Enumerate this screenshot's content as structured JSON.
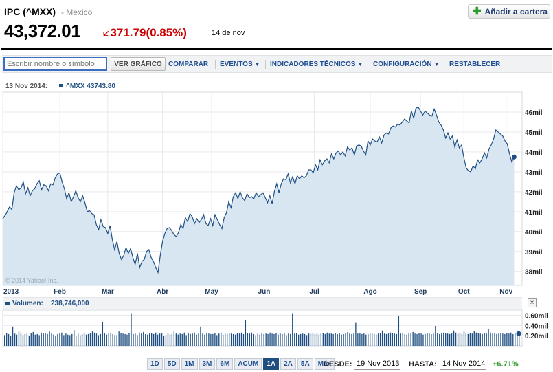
{
  "header": {
    "title": "IPC (^MXX)",
    "exchange": "- Mexico",
    "price": "43,372.01",
    "change": "371.79",
    "change_pct": "(0.85%)",
    "date": "14 de nov",
    "add_button": "Añadir a cartera",
    "colors": {
      "down": "#cc0000",
      "up": "#2a9a2a",
      "link": "#1f4f93"
    }
  },
  "toolbar": {
    "input_placeholder": "Escribir nombre o símbolo",
    "ver_grafico": "VER GRÁFICO",
    "comparar": "COMPARAR",
    "eventos": "EVENTOS",
    "indicadores": "INDICADORES TÉCNICOS",
    "configuracion": "CONFIGURACIÓN",
    "restablecer": "RESTABLECER"
  },
  "chart_data": [
    {
      "type": "area",
      "info_date": "13 Nov 2014:",
      "info_series": "^MXX 43743.80",
      "watermark": "© 2014 Yahoo! Inc.",
      "ylim": [
        37300,
        47000
      ],
      "y_ticks": [
        38000,
        39000,
        40000,
        41000,
        42000,
        43000,
        44000,
        45000,
        46000
      ],
      "y_tick_labels": [
        "38mil",
        "39mil",
        "40mil",
        "41mil",
        "42mil",
        "43mil",
        "44mil",
        "45mil",
        "46mil"
      ],
      "x_labels": [
        "2013",
        "Feb",
        "Mar",
        "Abr",
        "May",
        "Jun",
        "Jul",
        "Ago",
        "Sep",
        "Oct",
        "Nov"
      ],
      "x_label_pos": [
        0,
        50,
        92,
        140,
        183,
        229,
        273,
        322,
        366,
        404,
        441
      ],
      "x_range": [
        0,
        455
      ],
      "colors": {
        "line": "#1f4f82",
        "fill": "#d8e6f2"
      },
      "points": [
        [
          0,
          40650
        ],
        [
          3,
          40900
        ],
        [
          6,
          41250
        ],
        [
          8,
          41100
        ],
        [
          10,
          41950
        ],
        [
          12,
          42300
        ],
        [
          14,
          42100
        ],
        [
          16,
          42200
        ],
        [
          18,
          42500
        ],
        [
          20,
          41900
        ],
        [
          22,
          42200
        ],
        [
          24,
          41800
        ],
        [
          26,
          42050
        ],
        [
          28,
          42150
        ],
        [
          30,
          42400
        ],
        [
          32,
          42550
        ],
        [
          34,
          42100
        ],
        [
          36,
          42350
        ],
        [
          38,
          42300
        ],
        [
          40,
          42050
        ],
        [
          42,
          42400
        ],
        [
          44,
          42350
        ],
        [
          46,
          42700
        ],
        [
          48,
          42900
        ],
        [
          50,
          42950
        ],
        [
          52,
          42500
        ],
        [
          54,
          42150
        ],
        [
          56,
          41650
        ],
        [
          58,
          41950
        ],
        [
          60,
          41500
        ],
        [
          62,
          41750
        ],
        [
          64,
          42050
        ],
        [
          66,
          41700
        ],
        [
          68,
          41500
        ],
        [
          70,
          41800
        ],
        [
          72,
          41450
        ],
        [
          74,
          41000
        ],
        [
          76,
          41050
        ],
        [
          78,
          40900
        ],
        [
          80,
          40850
        ],
        [
          82,
          40350
        ],
        [
          84,
          40100
        ],
        [
          86,
          40600
        ],
        [
          88,
          40250
        ],
        [
          90,
          40200
        ],
        [
          92,
          39900
        ],
        [
          94,
          40300
        ],
        [
          96,
          39600
        ],
        [
          98,
          39100
        ],
        [
          100,
          39500
        ],
        [
          102,
          38900
        ],
        [
          104,
          38600
        ],
        [
          106,
          38800
        ],
        [
          108,
          39200
        ],
        [
          110,
          38900
        ],
        [
          112,
          39150
        ],
        [
          114,
          38700
        ],
        [
          116,
          38350
        ],
        [
          118,
          38900
        ],
        [
          120,
          38200
        ],
        [
          122,
          38500
        ],
        [
          124,
          38600
        ],
        [
          126,
          39000
        ],
        [
          128,
          39100
        ],
        [
          130,
          38700
        ],
        [
          132,
          38500
        ],
        [
          134,
          38200
        ],
        [
          136,
          37950
        ],
        [
          138,
          38800
        ],
        [
          140,
          39500
        ],
        [
          142,
          39900
        ],
        [
          144,
          40150
        ],
        [
          146,
          40200
        ],
        [
          148,
          40050
        ],
        [
          150,
          39850
        ],
        [
          152,
          39750
        ],
        [
          154,
          39950
        ],
        [
          156,
          40350
        ],
        [
          158,
          40150
        ],
        [
          160,
          40700
        ],
        [
          162,
          40500
        ],
        [
          164,
          40900
        ],
        [
          166,
          40750
        ],
        [
          168,
          40400
        ],
        [
          170,
          40650
        ],
        [
          172,
          40450
        ],
        [
          174,
          40600
        ],
        [
          176,
          40850
        ],
        [
          178,
          40400
        ],
        [
          180,
          40300
        ],
        [
          182,
          40650
        ],
        [
          184,
          40300
        ],
        [
          186,
          40850
        ],
        [
          188,
          40600
        ],
        [
          190,
          40350
        ],
        [
          192,
          40150
        ],
        [
          194,
          40700
        ],
        [
          196,
          40950
        ],
        [
          198,
          41500
        ],
        [
          200,
          41200
        ],
        [
          202,
          41750
        ],
        [
          204,
          41950
        ],
        [
          206,
          41650
        ],
        [
          208,
          42000
        ],
        [
          210,
          41700
        ],
        [
          212,
          41550
        ],
        [
          214,
          41900
        ],
        [
          216,
          41700
        ],
        [
          218,
          41750
        ],
        [
          220,
          41650
        ],
        [
          222,
          41950
        ],
        [
          224,
          41750
        ],
        [
          226,
          41850
        ],
        [
          228,
          41950
        ],
        [
          230,
          41700
        ],
        [
          232,
          41450
        ],
        [
          234,
          41800
        ],
        [
          236,
          41400
        ],
        [
          238,
          42000
        ],
        [
          240,
          42400
        ],
        [
          242,
          41950
        ],
        [
          244,
          42400
        ],
        [
          246,
          42650
        ],
        [
          248,
          42600
        ],
        [
          250,
          42900
        ],
        [
          252,
          42450
        ],
        [
          254,
          42750
        ],
        [
          256,
          42400
        ],
        [
          258,
          42800
        ],
        [
          260,
          42650
        ],
        [
          262,
          42800
        ],
        [
          264,
          42700
        ],
        [
          266,
          42800
        ],
        [
          268,
          43100
        ],
        [
          270,
          43100
        ],
        [
          272,
          42950
        ],
        [
          274,
          43350
        ],
        [
          276,
          43100
        ],
        [
          278,
          43600
        ],
        [
          280,
          43350
        ],
        [
          282,
          43550
        ],
        [
          284,
          43650
        ],
        [
          286,
          43450
        ],
        [
          288,
          43900
        ],
        [
          290,
          43650
        ],
        [
          292,
          43950
        ],
        [
          294,
          44050
        ],
        [
          296,
          43850
        ],
        [
          298,
          44000
        ],
        [
          300,
          43800
        ],
        [
          302,
          44250
        ],
        [
          304,
          44100
        ],
        [
          306,
          44200
        ],
        [
          308,
          43850
        ],
        [
          310,
          44300
        ],
        [
          312,
          44350
        ],
        [
          314,
          44300
        ],
        [
          316,
          44050
        ],
        [
          318,
          43850
        ],
        [
          320,
          44550
        ],
        [
          322,
          44350
        ],
        [
          324,
          44650
        ],
        [
          326,
          44550
        ],
        [
          328,
          44500
        ],
        [
          330,
          44750
        ],
        [
          332,
          44450
        ],
        [
          334,
          44850
        ],
        [
          336,
          44950
        ],
        [
          338,
          44900
        ],
        [
          340,
          45200
        ],
        [
          342,
          45300
        ],
        [
          344,
          45250
        ],
        [
          346,
          45400
        ],
        [
          348,
          45350
        ],
        [
          350,
          45500
        ],
        [
          352,
          45650
        ],
        [
          354,
          45550
        ],
        [
          356,
          45450
        ],
        [
          358,
          46050
        ],
        [
          360,
          45700
        ],
        [
          362,
          46200
        ],
        [
          364,
          46250
        ],
        [
          366,
          46050
        ],
        [
          368,
          45850
        ],
        [
          370,
          46050
        ],
        [
          372,
          45950
        ],
        [
          374,
          45850
        ],
        [
          376,
          45800
        ],
        [
          378,
          46150
        ],
        [
          380,
          45850
        ],
        [
          382,
          45500
        ],
        [
          384,
          45350
        ],
        [
          386,
          45100
        ],
        [
          388,
          44700
        ],
        [
          390,
          44950
        ],
        [
          392,
          44650
        ],
        [
          394,
          44800
        ],
        [
          396,
          44250
        ],
        [
          398,
          44600
        ],
        [
          400,
          44200
        ],
        [
          402,
          44350
        ],
        [
          404,
          43700
        ],
        [
          406,
          43200
        ],
        [
          408,
          43050
        ],
        [
          410,
          43000
        ],
        [
          412,
          43300
        ],
        [
          414,
          43150
        ],
        [
          416,
          43600
        ],
        [
          418,
          43450
        ],
        [
          420,
          43650
        ],
        [
          422,
          43950
        ],
        [
          424,
          43700
        ],
        [
          426,
          44150
        ],
        [
          428,
          44350
        ],
        [
          430,
          44650
        ],
        [
          432,
          45100
        ],
        [
          434,
          45000
        ],
        [
          436,
          44900
        ],
        [
          438,
          44800
        ],
        [
          440,
          44550
        ],
        [
          442,
          44400
        ],
        [
          444,
          43900
        ],
        [
          446,
          43500
        ],
        [
          448,
          43745
        ]
      ]
    },
    {
      "type": "bar",
      "info_label": "Volumen:",
      "info_value": "238,746,000",
      "ylim": [
        0,
        700000000
      ],
      "y_ticks": [
        200000000,
        400000000,
        600000000
      ],
      "y_tick_labels": [
        "0.20mil",
        "0.40mil",
        "0.60mil"
      ],
      "colors": {
        "bar": "#1f4f82"
      },
      "values": [
        210,
        250,
        230,
        190,
        380,
        240,
        220,
        280,
        260,
        210,
        230,
        240,
        200,
        250,
        270,
        220,
        230,
        210,
        260,
        240,
        250,
        230,
        280,
        240,
        220,
        200,
        230,
        250,
        260,
        210,
        240,
        220,
        210,
        230,
        310,
        200,
        240,
        210,
        230,
        260,
        220,
        230,
        250,
        280,
        260,
        240,
        210,
        230,
        470,
        250,
        220,
        240,
        260,
        230,
        210,
        210,
        280,
        250,
        240,
        230,
        220,
        250,
        640,
        230,
        240,
        210,
        260,
        240,
        270,
        230,
        220,
        240,
        250,
        230,
        260,
        220,
        240,
        250,
        200,
        210,
        250,
        220,
        230,
        290,
        240,
        220,
        240,
        230,
        260,
        210,
        250,
        230,
        240,
        260,
        220,
        240,
        380,
        240,
        220,
        250,
        240,
        230,
        230,
        250,
        210,
        240,
        260,
        220,
        240,
        230,
        250,
        240,
        230,
        220,
        250,
        240,
        260,
        230,
        500,
        250,
        240,
        260,
        230,
        210,
        240,
        220,
        250,
        230,
        240,
        230,
        260,
        240,
        230,
        250,
        220,
        240,
        230,
        250,
        210,
        240,
        230,
        640,
        240,
        250,
        220,
        230,
        240,
        230,
        210,
        240,
        240,
        250,
        230,
        240,
        220,
        240,
        250,
        230,
        260,
        240,
        240,
        230,
        250,
        230,
        240,
        220,
        230,
        250,
        270,
        240,
        230,
        240,
        450,
        240,
        250,
        230,
        240,
        220,
        230,
        250,
        240,
        230,
        220,
        240,
        250,
        300,
        240,
        230,
        240,
        260,
        250,
        240,
        230,
        580,
        240,
        250,
        230,
        220,
        240,
        250,
        270,
        240,
        230,
        250,
        240,
        220,
        230,
        250,
        240,
        230,
        240,
        390,
        250,
        230,
        240,
        260,
        250,
        240,
        230,
        250,
        300,
        260,
        240,
        250,
        230,
        280,
        240,
        230,
        250,
        240,
        290,
        260,
        250,
        240,
        230,
        250,
        240,
        330,
        260,
        240,
        250,
        230,
        240,
        250,
        240,
        230,
        250,
        240,
        260,
        230,
        240,
        250,
        239
      ],
      "value_unit_millions": true
    }
  ],
  "range_buttons": [
    "1D",
    "5D",
    "1M",
    "3M",
    "6M",
    "ACUM",
    "1A",
    "2A",
    "5A",
    "Máx"
  ],
  "range_active": "1A",
  "range": {
    "desde_label": "DESDE:",
    "desde": "19 Nov 2013",
    "hasta_label": "HASTA:",
    "hasta": "14 Nov 2014",
    "pct": "+6.71%"
  },
  "close_label": "×"
}
